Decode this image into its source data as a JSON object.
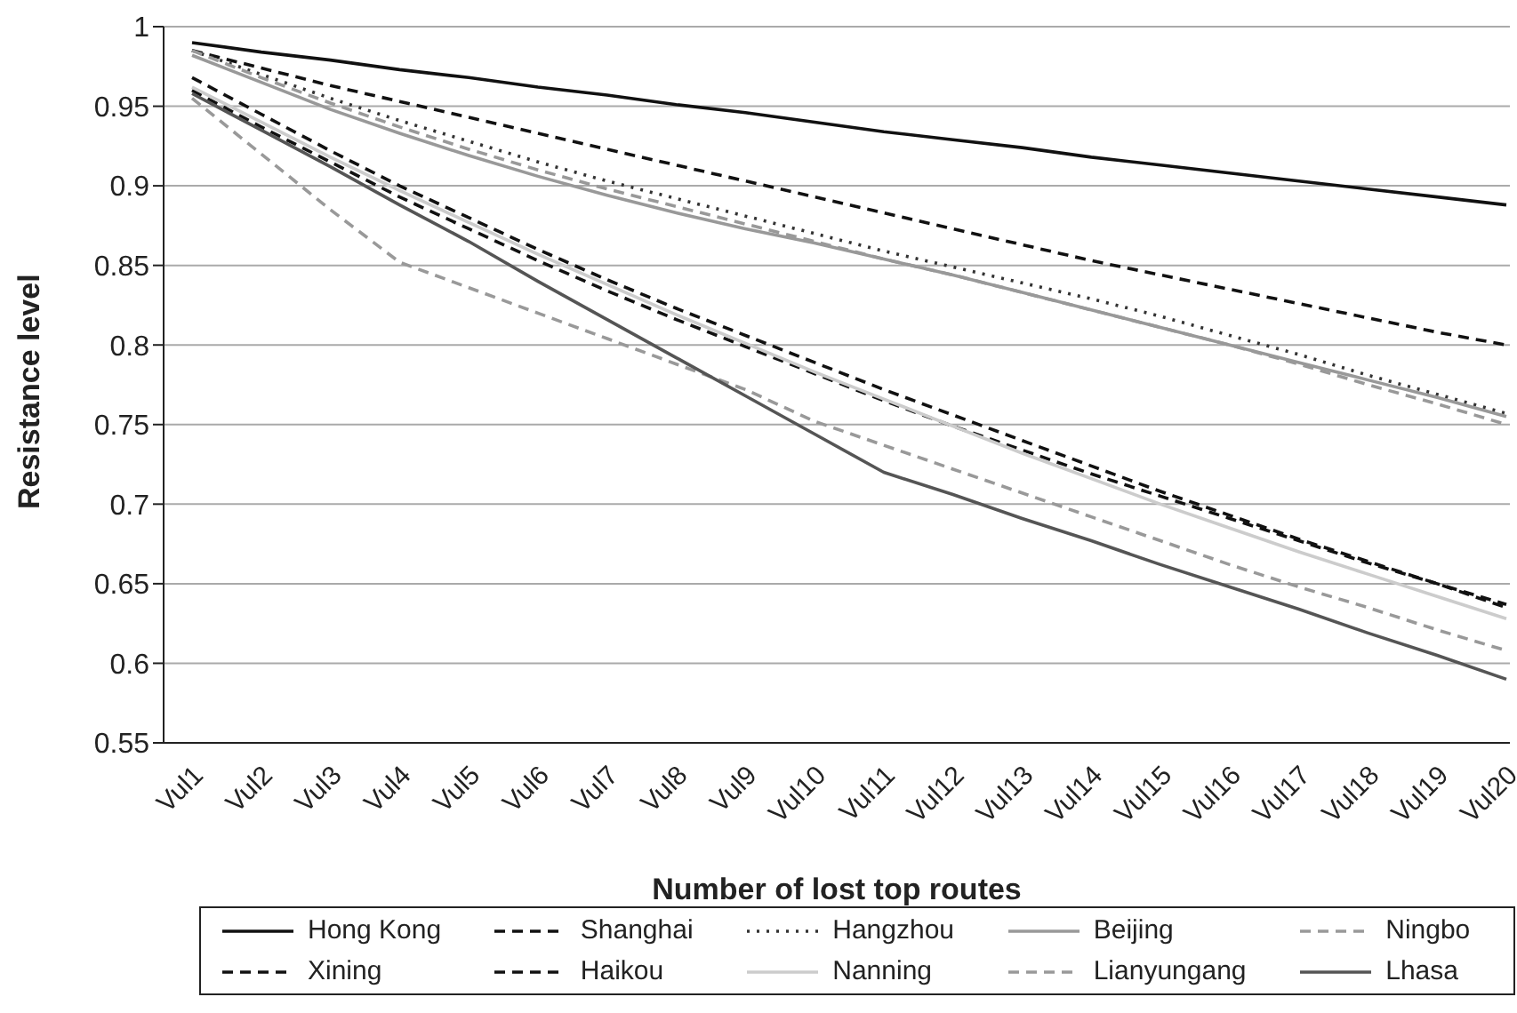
{
  "chart_data": {
    "type": "line",
    "xlabel": "Number of lost top routes",
    "ylabel": "Resistance level",
    "categories": [
      "Vul1",
      "Vul2",
      "Vul3",
      "Vul4",
      "Vul5",
      "Vul6",
      "Vul7",
      "Vul8",
      "Vul9",
      "Vul10",
      "Vul11",
      "Vul12",
      "Vul13",
      "Vul14",
      "Vul15",
      "Vul16",
      "Vul17",
      "Vul18",
      "Vul19",
      "Vul20"
    ],
    "ylim": [
      0.55,
      1
    ],
    "yticks": [
      0.55,
      0.6,
      0.65,
      0.7,
      0.75,
      0.8,
      0.85,
      0.9,
      0.95,
      1
    ],
    "grid": "y",
    "legend": "bottom",
    "marker": "none",
    "series": [
      {
        "name": "Hong Kong",
        "color": "#111111",
        "line_style": "solid",
        "values": [
          0.99,
          0.984,
          0.979,
          0.973,
          0.968,
          0.962,
          0.957,
          0.951,
          0.946,
          0.94,
          0.934,
          0.929,
          0.924,
          0.918,
          0.913,
          0.908,
          0.903,
          0.898,
          0.893,
          0.888
        ]
      },
      {
        "name": "Shanghai",
        "color": "#111111",
        "line_style": "dashed",
        "values": [
          0.985,
          0.974,
          0.963,
          0.953,
          0.943,
          0.933,
          0.923,
          0.913,
          0.903,
          0.893,
          0.883,
          0.873,
          0.863,
          0.853,
          0.844,
          0.835,
          0.826,
          0.817,
          0.808,
          0.8
        ]
      },
      {
        "name": "Hangzhou",
        "color": "#333333",
        "line_style": "dotted",
        "values": [
          0.985,
          0.97,
          0.955,
          0.941,
          0.928,
          0.915,
          0.903,
          0.892,
          0.881,
          0.87,
          0.859,
          0.849,
          0.839,
          0.829,
          0.818,
          0.806,
          0.794,
          0.781,
          0.769,
          0.757
        ]
      },
      {
        "name": "Beijing",
        "color": "#999999",
        "line_style": "solid",
        "values": [
          0.982,
          0.965,
          0.948,
          0.933,
          0.919,
          0.906,
          0.894,
          0.883,
          0.873,
          0.864,
          0.854,
          0.844,
          0.833,
          0.822,
          0.811,
          0.8,
          0.789,
          0.778,
          0.767,
          0.755
        ]
      },
      {
        "name": "Ningbo",
        "color": "#999999",
        "line_style": "dashed",
        "values": [
          0.985,
          0.968,
          0.952,
          0.937,
          0.923,
          0.91,
          0.898,
          0.887,
          0.876,
          0.865,
          0.854,
          0.844,
          0.833,
          0.822,
          0.811,
          0.8,
          0.788,
          0.775,
          0.763,
          0.75
        ]
      },
      {
        "name": "Xining",
        "color": "#111111",
        "line_style": "dashed",
        "values": [
          0.96,
          0.937,
          0.915,
          0.893,
          0.873,
          0.853,
          0.834,
          0.816,
          0.799,
          0.782,
          0.765,
          0.749,
          0.734,
          0.719,
          0.705,
          0.691,
          0.677,
          0.663,
          0.65,
          0.637
        ]
      },
      {
        "name": "Haikou",
        "color": "#111111",
        "line_style": "dashed",
        "values": [
          0.968,
          0.945,
          0.922,
          0.9,
          0.88,
          0.86,
          0.841,
          0.823,
          0.806,
          0.789,
          0.772,
          0.756,
          0.74,
          0.724,
          0.708,
          0.693,
          0.678,
          0.664,
          0.65,
          0.635
        ]
      },
      {
        "name": "Nanning",
        "color": "#cccccc",
        "line_style": "solid",
        "values": [
          0.962,
          0.94,
          0.918,
          0.897,
          0.877,
          0.857,
          0.838,
          0.819,
          0.801,
          0.783,
          0.766,
          0.749,
          0.732,
          0.716,
          0.7,
          0.685,
          0.67,
          0.656,
          0.642,
          0.628
        ]
      },
      {
        "name": "Lianyungang",
        "color": "#999999",
        "line_style": "dashed",
        "values": [
          0.955,
          0.92,
          0.885,
          0.852,
          0.836,
          0.82,
          0.804,
          0.788,
          0.772,
          0.752,
          0.737,
          0.722,
          0.707,
          0.692,
          0.677,
          0.662,
          0.648,
          0.635,
          0.621,
          0.608
        ]
      },
      {
        "name": "Lhasa",
        "color": "#555555",
        "line_style": "solid",
        "values": [
          0.958,
          0.935,
          0.912,
          0.888,
          0.865,
          0.84,
          0.816,
          0.792,
          0.768,
          0.744,
          0.72,
          0.706,
          0.691,
          0.677,
          0.662,
          0.648,
          0.634,
          0.619,
          0.605,
          0.59
        ]
      }
    ]
  }
}
